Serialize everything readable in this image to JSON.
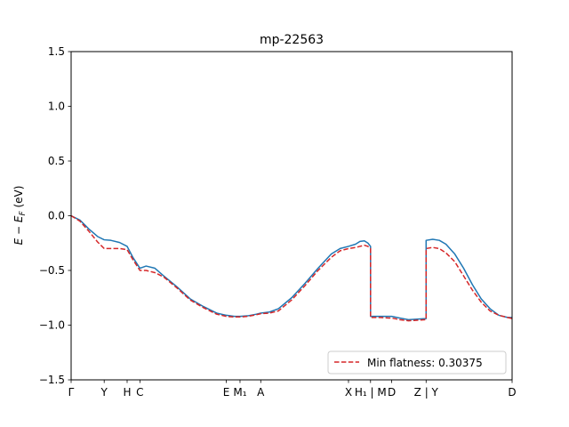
{
  "chart_data": {
    "type": "line",
    "title": "mp-22563",
    "ylabel": "E − E_F (eV)",
    "ylabel_display": {
      "main": "E − E",
      "sub": "F",
      "tail": " (eV)"
    },
    "xlim": [
      0,
      1
    ],
    "ylim": [
      -1.5,
      1.5
    ],
    "grid": false,
    "legend_placement": "lower-right",
    "y_ticks": [
      {
        "value": 1.5,
        "label": "1.5"
      },
      {
        "value": 1.0,
        "label": "1.0"
      },
      {
        "value": 0.5,
        "label": "0.5"
      },
      {
        "value": 0.0,
        "label": "0.0"
      },
      {
        "value": -0.5,
        "label": "−0.5"
      },
      {
        "value": -1.0,
        "label": "−1.0"
      },
      {
        "value": -1.5,
        "label": "−1.5"
      }
    ],
    "x_ticks": [
      {
        "pos": 0.0,
        "label": "Γ"
      },
      {
        "pos": 0.075,
        "label": "Y"
      },
      {
        "pos": 0.127,
        "label": "H"
      },
      {
        "pos": 0.156,
        "label": "C"
      },
      {
        "pos": 0.352,
        "label": "E"
      },
      {
        "pos": 0.383,
        "label": "M₁"
      },
      {
        "pos": 0.43,
        "label": "A"
      },
      {
        "pos": 0.629,
        "label": "X"
      },
      {
        "pos": 0.679,
        "label": "H₁ | M"
      },
      {
        "pos": 0.727,
        "label": "D"
      },
      {
        "pos": 0.805,
        "label": "Z | Y"
      },
      {
        "pos": 1.0,
        "label": "D"
      }
    ],
    "series": [
      {
        "color": "#1f77b4",
        "style": "solid",
        "x": [
          0,
          0.02,
          0.04,
          0.06,
          0.075,
          0.09,
          0.11,
          0.127,
          0.14,
          0.156,
          0.17,
          0.19,
          0.21,
          0.24,
          0.27,
          0.3,
          0.33,
          0.352,
          0.37,
          0.383,
          0.4,
          0.42,
          0.43,
          0.45,
          0.47,
          0.5,
          0.53,
          0.56,
          0.59,
          0.61,
          0.629,
          0.645,
          0.655,
          0.665,
          0.673,
          0.679,
          0.679,
          0.7,
          0.72,
          0.727,
          0.745,
          0.765,
          0.785,
          0.804,
          0.805,
          0.805,
          0.82,
          0.835,
          0.85,
          0.87,
          0.89,
          0.91,
          0.93,
          0.95,
          0.97,
          0.99,
          1.0
        ],
        "y": [
          0,
          -0.04,
          -0.12,
          -0.19,
          -0.22,
          -0.225,
          -0.245,
          -0.28,
          -0.38,
          -0.48,
          -0.46,
          -0.48,
          -0.55,
          -0.65,
          -0.76,
          -0.83,
          -0.89,
          -0.91,
          -0.92,
          -0.92,
          -0.915,
          -0.9,
          -0.89,
          -0.88,
          -0.85,
          -0.75,
          -0.62,
          -0.48,
          -0.35,
          -0.3,
          -0.28,
          -0.26,
          -0.235,
          -0.23,
          -0.25,
          -0.28,
          -0.92,
          -0.92,
          -0.92,
          -0.92,
          -0.935,
          -0.95,
          -0.945,
          -0.94,
          -0.94,
          -0.225,
          -0.215,
          -0.225,
          -0.26,
          -0.35,
          -0.48,
          -0.63,
          -0.76,
          -0.85,
          -0.91,
          -0.93,
          -0.93
        ]
      },
      {
        "name": "Min flatness: 0.30375",
        "color": "#d62728",
        "style": "dashed",
        "x": [
          0,
          0.02,
          0.04,
          0.06,
          0.075,
          0.09,
          0.11,
          0.127,
          0.14,
          0.156,
          0.17,
          0.19,
          0.21,
          0.24,
          0.27,
          0.3,
          0.33,
          0.352,
          0.37,
          0.383,
          0.4,
          0.42,
          0.43,
          0.45,
          0.47,
          0.5,
          0.53,
          0.56,
          0.59,
          0.61,
          0.629,
          0.645,
          0.655,
          0.665,
          0.673,
          0.679,
          0.679,
          0.7,
          0.72,
          0.727,
          0.745,
          0.765,
          0.785,
          0.804,
          0.805,
          0.805,
          0.82,
          0.835,
          0.85,
          0.87,
          0.89,
          0.91,
          0.93,
          0.95,
          0.97,
          0.99,
          1.0
        ],
        "y": [
          0,
          -0.05,
          -0.14,
          -0.24,
          -0.3,
          -0.3,
          -0.3,
          -0.31,
          -0.4,
          -0.5,
          -0.5,
          -0.52,
          -0.56,
          -0.66,
          -0.77,
          -0.84,
          -0.9,
          -0.92,
          -0.925,
          -0.925,
          -0.92,
          -0.905,
          -0.895,
          -0.89,
          -0.87,
          -0.77,
          -0.64,
          -0.5,
          -0.38,
          -0.32,
          -0.3,
          -0.29,
          -0.28,
          -0.27,
          -0.28,
          -0.3,
          -0.93,
          -0.93,
          -0.935,
          -0.935,
          -0.95,
          -0.96,
          -0.955,
          -0.95,
          -0.95,
          -0.3,
          -0.29,
          -0.3,
          -0.34,
          -0.42,
          -0.55,
          -0.68,
          -0.79,
          -0.87,
          -0.91,
          -0.93,
          -0.94
        ]
      }
    ]
  }
}
